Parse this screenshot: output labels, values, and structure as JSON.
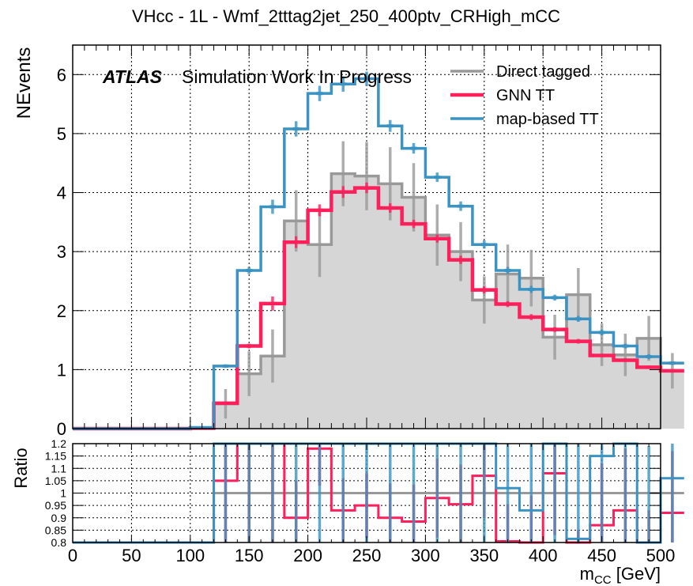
{
  "chart_data": [
    {
      "type": "line",
      "style": "step-histogram",
      "title": "VHcc - 1L - Wmf_2tttag2jet_250_400ptv_CRHigh_mCC",
      "ylabel": "NEvents",
      "ylim": [
        0,
        6.5
      ],
      "xlim": [
        0,
        500
      ],
      "bin_width": 20,
      "x_bin_edges_start": 0,
      "x_ticks": [
        "0",
        "50",
        "100",
        "150",
        "200",
        "250",
        "300",
        "350",
        "400",
        "450",
        "500"
      ],
      "y_ticks": [
        "0",
        "1",
        "2",
        "3",
        "4",
        "5",
        "6"
      ],
      "grid": true,
      "legend_position": "top-right",
      "annotation": {
        "bold": "ATLAS",
        "text": "Simulation Work In Progress"
      },
      "series": [
        {
          "name": "Direct tagged",
          "color": "#999999",
          "fill": "#d6d6d6",
          "values": [
            0,
            0,
            0,
            0,
            0,
            0,
            0.42,
            0.93,
            1.23,
            3.52,
            3.12,
            4.32,
            4.28,
            4.15,
            3.92,
            3.28,
            3.0,
            2.18,
            2.62,
            2.55,
            1.55,
            2.27,
            1.42,
            1.25,
            1.53,
            0.98
          ],
          "errors": [
            0,
            0,
            0,
            0,
            0,
            0,
            0.25,
            0.38,
            0.45,
            0.52,
            0.55,
            0.55,
            0.58,
            0.62,
            0.58,
            0.52,
            0.5,
            0.4,
            0.5,
            0.48,
            0.38,
            0.45,
            0.36,
            0.36,
            0.38,
            0.3
          ]
        },
        {
          "name": "GNN TT",
          "color": "#ff1f5b",
          "values": [
            0,
            0,
            0,
            0,
            0,
            0.01,
            0.43,
            1.4,
            2.12,
            3.16,
            3.7,
            4.01,
            4.08,
            3.74,
            3.47,
            3.22,
            2.86,
            2.35,
            2.11,
            1.89,
            1.68,
            1.48,
            1.24,
            1.16,
            1.04,
            0.98
          ],
          "errors": [
            0,
            0,
            0,
            0,
            0,
            0,
            0.03,
            0.04,
            0.12,
            0.1,
            0.1,
            0.1,
            0.09,
            0.08,
            0.07,
            0.07,
            0.07,
            0.06,
            0.05,
            0.05,
            0.04,
            0.04,
            0.03,
            0.03,
            0.03,
            0.03
          ]
        },
        {
          "name": "map-based TT",
          "color": "#3a93c3",
          "values": [
            0,
            0,
            0,
            0,
            0,
            0.02,
            1.06,
            2.68,
            3.76,
            5.08,
            5.68,
            5.84,
            5.93,
            5.13,
            4.75,
            4.26,
            3.77,
            3.12,
            2.68,
            2.36,
            2.22,
            1.86,
            1.63,
            1.4,
            1.22,
            1.11
          ],
          "errors": [
            0,
            0,
            0,
            0,
            0,
            0,
            0.03,
            0.06,
            0.12,
            0.13,
            0.13,
            0.13,
            0.12,
            0.1,
            0.09,
            0.08,
            0.08,
            0.07,
            0.06,
            0.06,
            0.05,
            0.05,
            0.05,
            0.04,
            0.04,
            0.03
          ]
        }
      ]
    },
    {
      "type": "line",
      "style": "step-histogram",
      "ylabel": "Ratio",
      "xlabel_main": "m",
      "xlabel_sub": "CC",
      "xlabel_unit": " [GeV]",
      "ylim": [
        0.8,
        1.2
      ],
      "xlim": [
        0,
        500
      ],
      "bin_width": 20,
      "y_ticks": [
        "0.8",
        "0.85",
        "0.9",
        "0.95",
        "1",
        "1.05",
        "1.1",
        "1.15",
        "1.2"
      ],
      "x_ticks": [
        "0",
        "50",
        "100",
        "150",
        "200",
        "250",
        "300",
        "350",
        "400",
        "450",
        "500"
      ],
      "grid": true,
      "series": [
        {
          "name": "Direct tagged",
          "color": "#999999",
          "values": [
            0.8,
            0.8,
            0.8,
            0.8,
            0.8,
            0.8,
            1,
            1,
            1,
            1,
            1,
            1,
            1,
            1,
            1,
            1,
            1,
            1,
            1,
            1,
            1,
            1,
            1,
            1,
            1,
            1
          ]
        },
        {
          "name": "GNN TT",
          "color": "#ff1f5b",
          "values": [
            0.8,
            0.8,
            0.8,
            0.8,
            0.8,
            0.8,
            1.05,
            1.2,
            1.2,
            0.9,
            1.18,
            0.93,
            0.95,
            0.9,
            0.885,
            0.98,
            0.955,
            1.07,
            0.805,
            0.74,
            1.08,
            0.65,
            0.87,
            0.93,
            0.68,
            0.92
          ],
          "errors": [
            0,
            0,
            0,
            0,
            0,
            0,
            0.3,
            0.4,
            0.4,
            0.15,
            0.15,
            0.13,
            0.13,
            0.14,
            0.15,
            0.16,
            0.16,
            0.17,
            0.15,
            0.25,
            0.25,
            0.2,
            0.25,
            0.25,
            0.25,
            0.25
          ]
        },
        {
          "name": "map-based TT",
          "color": "#3a93c3",
          "values": [
            0.8,
            0.8,
            0.8,
            0.8,
            0.8,
            0.8,
            1.2,
            1.2,
            1.2,
            1.2,
            1.2,
            1.2,
            1.2,
            1.2,
            1.2,
            1.2,
            1.2,
            1.2,
            1.02,
            0.93,
            1.2,
            0.815,
            1.15,
            1.2,
            0.79,
            1.06
          ],
          "errors": [
            0,
            0,
            0,
            0,
            0,
            0,
            0.4,
            0.4,
            0.4,
            0.4,
            0.4,
            0.4,
            0.4,
            0.4,
            0.4,
            0.4,
            0.4,
            0.4,
            0.4,
            0.4,
            0.4,
            0.4,
            0.4,
            0.4,
            0.4,
            0.4
          ]
        }
      ]
    }
  ]
}
